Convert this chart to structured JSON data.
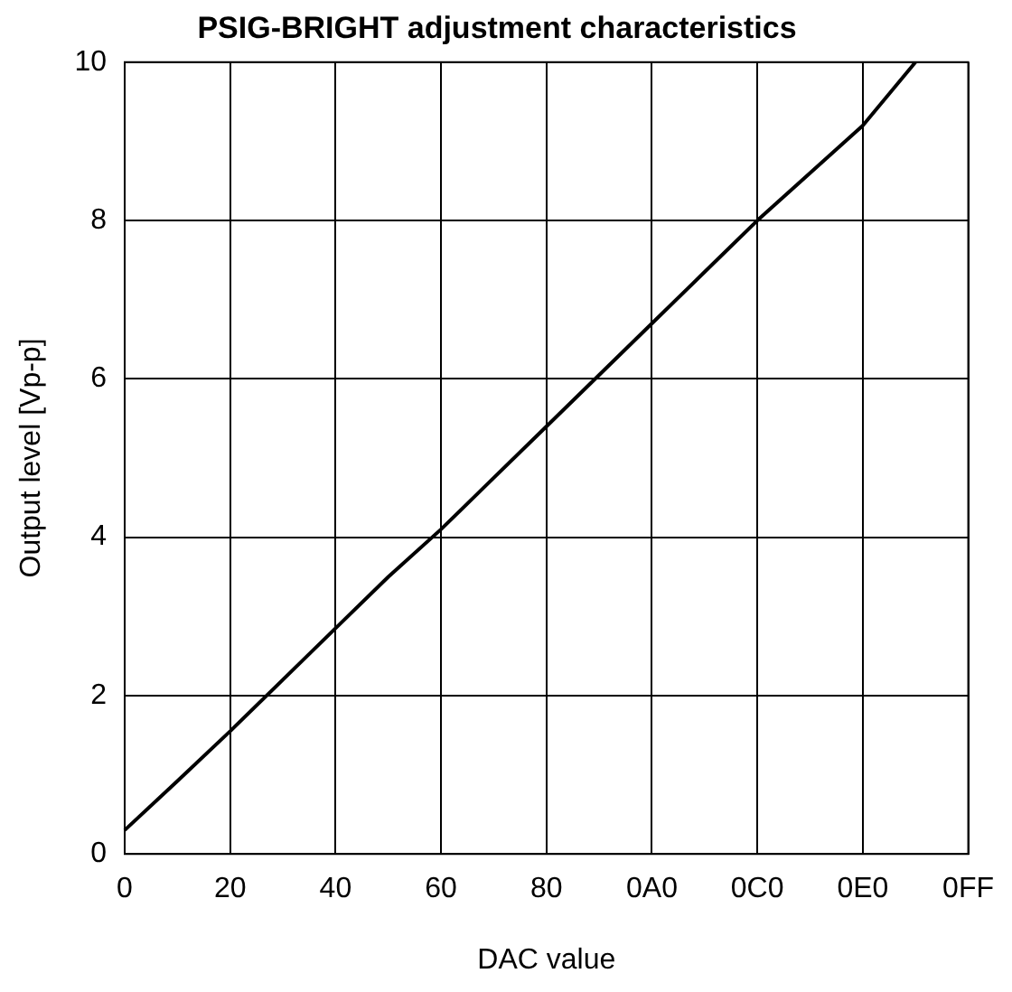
{
  "chart_data": {
    "type": "line",
    "title": "PSIG-BRIGHT adjustment characteristics",
    "xlabel": "DAC value",
    "ylabel": "Output level [Vp-p]",
    "categories": [
      "0",
      null,
      "20",
      null,
      "40",
      null,
      "60",
      null,
      "80",
      null,
      "0A0",
      null,
      "0C0",
      null,
      "0E0",
      null,
      "0FF"
    ],
    "series": [
      {
        "color": "#000000",
        "values": [
          0.3,
          0.92,
          1.55,
          2.2,
          2.85,
          3.5,
          4.1,
          4.75,
          5.4,
          6.05,
          6.7,
          7.35,
          8.0,
          8.6,
          9.2,
          10,
          null
        ]
      }
    ],
    "ylim": [
      0,
      10
    ],
    "yticks": [
      0,
      2,
      4,
      6,
      8,
      10
    ],
    "grid": true,
    "legend": false,
    "marker": "none",
    "line_style": "solid"
  }
}
